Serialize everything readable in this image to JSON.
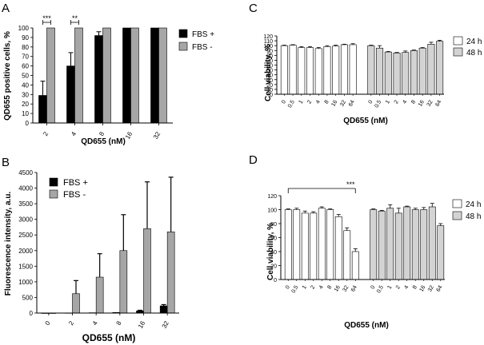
{
  "figure": {
    "colors": {
      "fbs_plus": "#000000",
      "fbs_minus": "#a6a6a6",
      "h24": "#ffffff",
      "h48": "#d3d3d3"
    }
  },
  "chart_data": [
    {
      "panel": "A",
      "type": "bar",
      "categories": [
        "2",
        "4",
        "8",
        "16",
        "32"
      ],
      "series": [
        {
          "name": "FBS +",
          "values": [
            29,
            60,
            92,
            100,
            100
          ],
          "errors": [
            15,
            14,
            4,
            0,
            0
          ]
        },
        {
          "name": "FBS -",
          "values": [
            100,
            100,
            100,
            100,
            100
          ],
          "errors": [
            0,
            0,
            0,
            0,
            0
          ]
        }
      ],
      "xlabel": "QD655 (nM)",
      "ylabel": "QD655 positive cells, %",
      "ylim": [
        0,
        100
      ],
      "yticks": [
        "0",
        "10",
        "20",
        "30",
        "40",
        "50",
        "60",
        "70",
        "80",
        "90",
        "100"
      ],
      "annotations": [
        {
          "text": "***",
          "between": [
            "2"
          ]
        },
        {
          "text": "**",
          "between": [
            "4"
          ]
        }
      ],
      "legend": "right"
    },
    {
      "panel": "B",
      "type": "bar",
      "categories": [
        "0",
        "2",
        "4",
        "8",
        "16",
        "32"
      ],
      "series": [
        {
          "name": "FBS +",
          "values": [
            0,
            5,
            10,
            20,
            70,
            230
          ],
          "errors": [
            0,
            0,
            0,
            0,
            20,
            40
          ]
        },
        {
          "name": "FBS -",
          "values": [
            0,
            620,
            1150,
            2000,
            2700,
            2600
          ],
          "errors": [
            0,
            420,
            750,
            1150,
            1500,
            1750
          ]
        }
      ],
      "xlabel": "QD655 (nM)",
      "ylabel": "Fluorescence intensity, a.u.",
      "ylim": [
        0,
        4500
      ],
      "yticks": [
        "0",
        "500",
        "1000",
        "1500",
        "2000",
        "2500",
        "3000",
        "3500",
        "4000",
        "4500"
      ],
      "legend": "top-left"
    },
    {
      "panel": "C",
      "type": "bar",
      "categories": [
        "0",
        "0.5",
        "1",
        "2",
        "4",
        "8",
        "16",
        "32",
        "64"
      ],
      "series": [
        {
          "name": "24 h",
          "values": [
            100,
            101,
            96,
            96,
            94,
            98,
            99,
            102,
            102
          ],
          "errors": [
            1,
            1,
            2,
            2,
            2,
            2,
            2,
            1,
            2
          ]
        },
        {
          "name": "48 h",
          "values": [
            100,
            95,
            87,
            85,
            86,
            90,
            95,
            103,
            109
          ],
          "errors": [
            1,
            5,
            1,
            1,
            3,
            1,
            1,
            4,
            2
          ]
        }
      ],
      "xlabel": "QD655 (nM)",
      "ylabel": "Cell viability, %",
      "ylim": [
        0,
        120
      ],
      "yticks": [
        "0",
        "10",
        "20",
        "30",
        "40",
        "50",
        "60",
        "70",
        "80",
        "90",
        "100",
        "110",
        "120"
      ],
      "legend": "right"
    },
    {
      "panel": "D",
      "type": "bar",
      "categories": [
        "0",
        "0.5",
        "1",
        "2",
        "4",
        "8",
        "16",
        "32",
        "64"
      ],
      "series": [
        {
          "name": "24 h",
          "values": [
            100,
            100,
            95,
            95,
            102,
            100,
            90,
            70,
            40
          ],
          "errors": [
            1,
            2,
            3,
            2,
            2,
            1,
            3,
            4,
            4
          ]
        },
        {
          "name": "48 h",
          "values": [
            100,
            98,
            102,
            95,
            104,
            100,
            100,
            104,
            77
          ],
          "errors": [
            1,
            1,
            5,
            7,
            1,
            2,
            3,
            5,
            3
          ]
        }
      ],
      "xlabel": "QD655 (nM)",
      "ylabel": "Cell viability, %",
      "ylim": [
        0,
        120
      ],
      "yticks": [
        "0",
        "20",
        "40",
        "60",
        "80",
        "100",
        "120"
      ],
      "annotations": [
        {
          "text": "***",
          "between": [
            "0",
            "64"
          ]
        }
      ],
      "legend": "right"
    }
  ]
}
